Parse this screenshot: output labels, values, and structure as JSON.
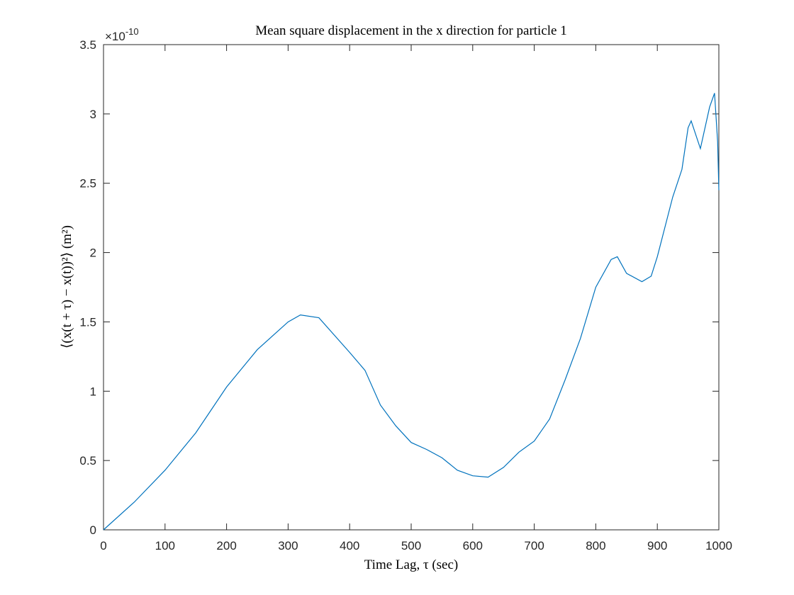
{
  "chart_data": {
    "type": "line",
    "title": "Mean square displacement in the x direction for particle 1",
    "x_label": "Time Lag, τ (sec)",
    "y_label": "⟨(x(t + τ) − x(t))²⟩ (m²)",
    "y_multiplier": {
      "base": "×10",
      "exponent": "-10"
    },
    "x": [
      0,
      50,
      100,
      150,
      200,
      250,
      300,
      320,
      350,
      400,
      425,
      450,
      475,
      500,
      525,
      550,
      575,
      600,
      625,
      650,
      675,
      700,
      725,
      750,
      775,
      800,
      825,
      835,
      850,
      875,
      890,
      900,
      925,
      940,
      950,
      955,
      970,
      985,
      993,
      998,
      1000
    ],
    "values": [
      0,
      0.2,
      0.43,
      0.7,
      1.03,
      1.3,
      1.5,
      1.55,
      1.53,
      1.28,
      1.15,
      0.9,
      0.75,
      0.63,
      0.58,
      0.52,
      0.43,
      0.39,
      0.38,
      0.45,
      0.56,
      0.64,
      0.8,
      1.08,
      1.38,
      1.75,
      1.95,
      1.97,
      1.85,
      1.79,
      1.83,
      1.97,
      2.4,
      2.6,
      2.9,
      2.95,
      2.75,
      3.05,
      3.15,
      2.8,
      2.45
    ],
    "color": "#0072bd",
    "xlim": [
      0,
      1000
    ],
    "xticks": [
      0,
      100,
      200,
      300,
      400,
      500,
      600,
      700,
      800,
      900,
      1000
    ],
    "ylim": [
      0,
      3.5
    ],
    "yticks": [
      0,
      0.5,
      1,
      1.5,
      2,
      2.5,
      3,
      3.5
    ]
  }
}
